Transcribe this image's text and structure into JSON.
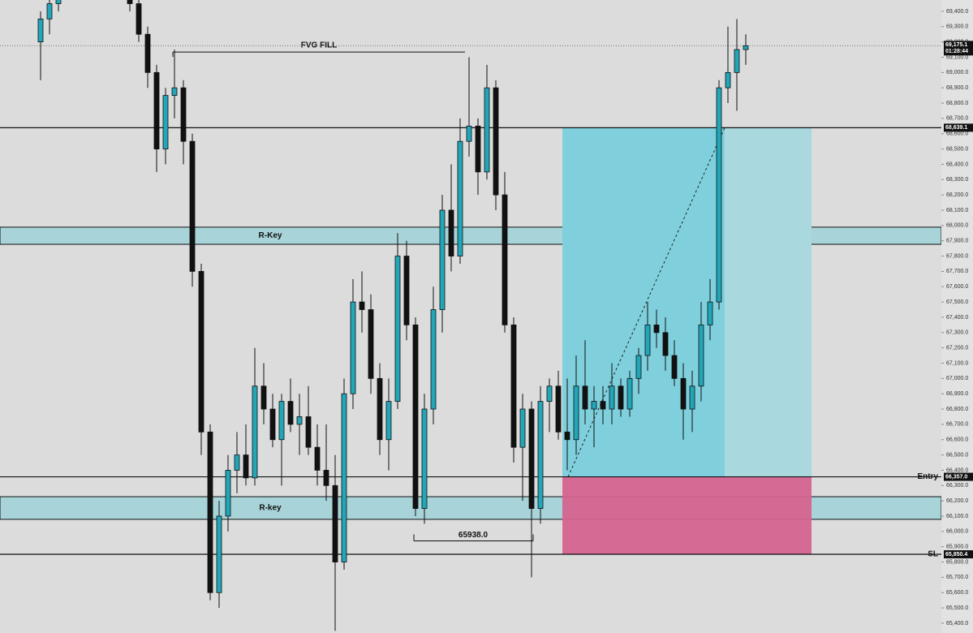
{
  "chart_data": {
    "type": "candlestick",
    "ylim": [
      65336,
      69474
    ],
    "yticks": [
      {
        "value": 65400,
        "label": "65,400.0"
      },
      {
        "value": 65500,
        "label": "65,500.0"
      },
      {
        "value": 65600,
        "label": "65,600.0"
      },
      {
        "value": 65700,
        "label": "65,700.0"
      },
      {
        "value": 65800,
        "label": "65,800.0"
      },
      {
        "value": 65900,
        "label": "65,900.0"
      },
      {
        "value": 66000,
        "label": "66,000.0"
      },
      {
        "value": 66100,
        "label": "66,100.0"
      },
      {
        "value": 66200,
        "label": "66,200.0"
      },
      {
        "value": 66300,
        "label": "66,300.0"
      },
      {
        "value": 66400,
        "label": "66,400.0"
      },
      {
        "value": 66500,
        "label": "66,500.0"
      },
      {
        "value": 66600,
        "label": "66,600.0"
      },
      {
        "value": 66700,
        "label": "66,700.0"
      },
      {
        "value": 66800,
        "label": "66,800.0"
      },
      {
        "value": 66900,
        "label": "66,900.0"
      },
      {
        "value": 67000,
        "label": "67,000.0"
      },
      {
        "value": 67100,
        "label": "67,100.0"
      },
      {
        "value": 67200,
        "label": "67,200.0"
      },
      {
        "value": 67300,
        "label": "67,300.0"
      },
      {
        "value": 67400,
        "label": "67,400.0"
      },
      {
        "value": 67500,
        "label": "67,500.0"
      },
      {
        "value": 67600,
        "label": "67,600.0"
      },
      {
        "value": 67700,
        "label": "67,700.0"
      },
      {
        "value": 67800,
        "label": "67,800.0"
      },
      {
        "value": 67900,
        "label": "67,900.0"
      },
      {
        "value": 68000,
        "label": "68,000.0"
      },
      {
        "value": 68100,
        "label": "68,100.0"
      },
      {
        "value": 68200,
        "label": "68,200.0"
      },
      {
        "value": 68300,
        "label": "68,300.0"
      },
      {
        "value": 68400,
        "label": "68,400.0"
      },
      {
        "value": 68500,
        "label": "68,500.0"
      },
      {
        "value": 68600,
        "label": "68,600.0"
      },
      {
        "value": 68700,
        "label": "68,700.0"
      },
      {
        "value": 68800,
        "label": "68,800.0"
      },
      {
        "value": 68900,
        "label": "68,900.0"
      },
      {
        "value": 69000,
        "label": "69,000.0"
      },
      {
        "value": 69100,
        "label": "69,100.0"
      },
      {
        "value": 69200,
        "label": "69,200.0"
      },
      {
        "value": 69300,
        "label": "69,300.0"
      },
      {
        "value": 69400,
        "label": "69,400.0"
      }
    ],
    "up_color": "#22a6b8",
    "down_color": "#111111",
    "ohlc": [
      [
        69200,
        69400,
        68950,
        69350
      ],
      [
        69350,
        69500,
        69250,
        69450
      ],
      [
        69450,
        69600,
        69400,
        69550
      ],
      [
        69550,
        69700,
        69500,
        69650
      ],
      [
        69650,
        69750,
        69550,
        69600
      ],
      [
        69600,
        69700,
        69500,
        69650
      ],
      [
        69650,
        69750,
        69600,
        69700
      ],
      [
        69700,
        69800,
        69600,
        69650
      ],
      [
        69650,
        69750,
        69550,
        69600
      ],
      [
        69600,
        69700,
        69500,
        69550
      ],
      [
        69550,
        69600,
        69400,
        69450
      ],
      [
        69450,
        69500,
        69200,
        69250
      ],
      [
        69250,
        69300,
        68900,
        69000
      ],
      [
        69000,
        69050,
        68350,
        68500
      ],
      [
        68500,
        68900,
        68400,
        68850
      ],
      [
        68850,
        69150,
        68700,
        68900
      ],
      [
        68900,
        68950,
        68400,
        68550
      ],
      [
        68550,
        68600,
        67600,
        67700
      ],
      [
        67700,
        67750,
        66500,
        66650
      ],
      [
        66650,
        66700,
        65550,
        65600
      ],
      [
        65600,
        66200,
        65500,
        66100
      ],
      [
        66100,
        66500,
        66000,
        66400
      ],
      [
        66400,
        66650,
        66250,
        66500
      ],
      [
        66500,
        66700,
        66300,
        66350
      ],
      [
        66350,
        67200,
        66300,
        66950
      ],
      [
        66950,
        67100,
        66700,
        66800
      ],
      [
        66800,
        66900,
        66550,
        66600
      ],
      [
        66600,
        66900,
        66300,
        66850
      ],
      [
        66850,
        67000,
        66650,
        66700
      ],
      [
        66700,
        66900,
        66500,
        66750
      ],
      [
        66750,
        66950,
        66500,
        66550
      ],
      [
        66550,
        66700,
        66300,
        66400
      ],
      [
        66400,
        66700,
        66200,
        66300
      ],
      [
        66300,
        66500,
        65350,
        65800
      ],
      [
        65800,
        67000,
        65750,
        66900
      ],
      [
        66900,
        67650,
        66800,
        67500
      ],
      [
        67500,
        67700,
        67300,
        67450
      ],
      [
        67450,
        67550,
        66900,
        67000
      ],
      [
        67000,
        67100,
        66500,
        66600
      ],
      [
        66600,
        67000,
        66400,
        66850
      ],
      [
        66850,
        67950,
        66800,
        67800
      ],
      [
        67800,
        67900,
        67250,
        67350
      ],
      [
        67350,
        67400,
        66100,
        66150
      ],
      [
        66150,
        66900,
        66050,
        66800
      ],
      [
        66800,
        67600,
        66700,
        67450
      ],
      [
        67450,
        68200,
        67300,
        68100
      ],
      [
        68100,
        68400,
        67700,
        67800
      ],
      [
        67800,
        68700,
        67750,
        68550
      ],
      [
        68550,
        69100,
        68450,
        68650
      ],
      [
        68650,
        68700,
        68200,
        68350
      ],
      [
        68350,
        69050,
        68300,
        68900
      ],
      [
        68900,
        68950,
        68100,
        68200
      ],
      [
        68200,
        68350,
        67300,
        67350
      ],
      [
        67350,
        67400,
        66450,
        66550
      ],
      [
        66550,
        66900,
        66200,
        66800
      ],
      [
        66800,
        66850,
        65700,
        66150
      ],
      [
        66150,
        66950,
        66050,
        66850
      ],
      [
        66850,
        67000,
        66650,
        66950
      ],
      [
        66950,
        67050,
        66600,
        66650
      ],
      [
        66650,
        67000,
        66400,
        66600
      ],
      [
        66600,
        67150,
        66500,
        66950
      ],
      [
        66950,
        67250,
        66700,
        66800
      ],
      [
        66800,
        66950,
        66550,
        66850
      ],
      [
        66850,
        66950,
        66700,
        66800
      ],
      [
        66800,
        67100,
        66700,
        66950
      ],
      [
        66950,
        67000,
        66750,
        66800
      ],
      [
        66800,
        67050,
        66750,
        67000
      ],
      [
        67000,
        67200,
        66900,
        67150
      ],
      [
        67150,
        67500,
        67050,
        67350
      ],
      [
        67350,
        67450,
        67200,
        67300
      ],
      [
        67300,
        67400,
        67050,
        67150
      ],
      [
        67150,
        67250,
        66950,
        67000
      ],
      [
        67000,
        67100,
        66600,
        66800
      ],
      [
        66800,
        67050,
        66650,
        66950
      ],
      [
        66950,
        67500,
        66850,
        67350
      ],
      [
        67350,
        67650,
        67250,
        67500
      ],
      [
        67500,
        68950,
        67450,
        68900
      ],
      [
        68900,
        69300,
        68800,
        69000
      ],
      [
        69000,
        69350,
        68750,
        69150
      ],
      [
        69150,
        69250,
        69050,
        69175.1
      ]
    ],
    "lines": [
      {
        "value": 68639.1,
        "tag": "68,639.1"
      },
      {
        "value": 66357.0,
        "tag": "66,357.0",
        "label": "Entry"
      },
      {
        "value": 65850.4,
        "tag": "65,850.4",
        "label": "SL"
      }
    ],
    "zones": [
      {
        "top": 67989,
        "bottom": 67877,
        "label": "R-Key"
      },
      {
        "top": 66227,
        "bottom": 66079,
        "label": "R-key"
      }
    ],
    "fvg": {
      "value": 69134,
      "label": "FVG FILL"
    },
    "low_mark": {
      "value": 65938.0,
      "label": "65938.0"
    },
    "current_price": {
      "value": 69175.1,
      "tag": "69,175.1",
      "countdown": "01:28:44"
    }
  }
}
